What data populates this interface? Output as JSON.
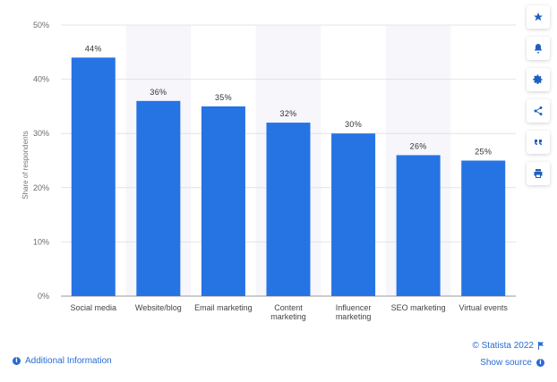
{
  "chart_data": {
    "type": "bar",
    "categories": [
      "Social media",
      "Website/blog",
      "Email marketing",
      "Content marketing",
      "Influencer marketing",
      "SEO marketing",
      "Virtual events"
    ],
    "values": [
      44,
      36,
      35,
      32,
      30,
      26,
      25
    ],
    "value_labels": [
      "44%",
      "36%",
      "35%",
      "32%",
      "30%",
      "26%",
      "25%"
    ],
    "ylabel": "Share of respondents",
    "yticks": [
      "0%",
      "10%",
      "20%",
      "30%",
      "40%",
      "50%"
    ],
    "ylim": [
      0,
      50
    ],
    "grid": true,
    "bar_color": "#2673e4",
    "alt_band_color": "#f6f6fb"
  },
  "toolbar": {
    "icons": [
      "star-icon",
      "bell-icon",
      "gear-icon",
      "share-icon",
      "quote-icon",
      "print-icon"
    ]
  },
  "footer": {
    "credit": "© Statista 2022",
    "additional_info": "Additional Information",
    "show_source": "Show source"
  },
  "colors": {
    "accent": "#2a6bd1"
  }
}
